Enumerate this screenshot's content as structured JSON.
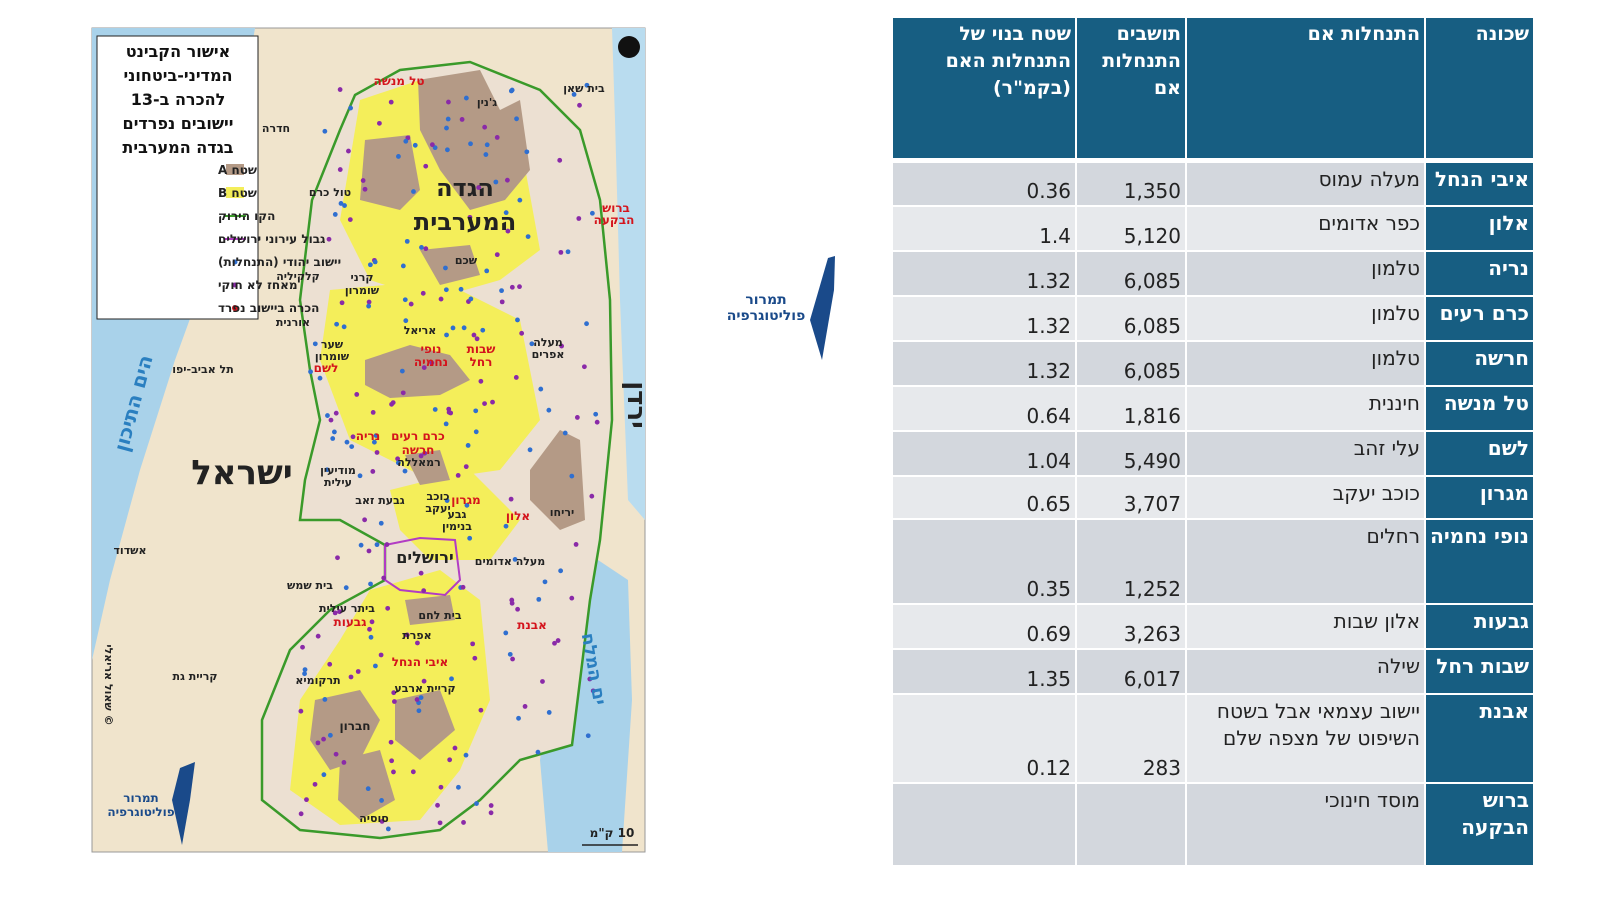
{
  "map": {
    "title_lines": [
      "אישור הקבינט",
      "המדיני-ביטחוני",
      "להכרה ב-13",
      "יישובים נפרדים",
      "בגדה המערבית"
    ],
    "legend": [
      "שטח A",
      "שטח B",
      "הקו הירוק",
      "גבול עירוני ירושלים",
      "יישוב יהודי (התנחלות)",
      "מאחז לא חוקי",
      "הכרה ביישוב נפרד"
    ],
    "labels": [
      "הגדה",
      "המערבית",
      "ישראל",
      "הים התיכון",
      "ים המלח",
      "ירדן",
      "טל מנשה",
      "בית שאן",
      "ג'נין",
      "חדרה",
      "ברוש",
      "הבקעה",
      "טול כרם",
      "שכם",
      "קלקיליה",
      "קרני",
      "שומרון",
      "אורנית",
      "אריאל",
      "שער",
      "שומרון",
      "נופי",
      "נחמיה",
      "שבות",
      "רחל",
      "מעלה",
      "אפרים",
      "לשם",
      "תל אביב-יפו",
      "כרם רעים",
      "נריה",
      "חרשה",
      "רמאללה",
      "מודיעין",
      "עילית",
      "מגרון",
      "כוכב",
      "יעקב",
      "אלון",
      "יריחו",
      "גבעת זאב",
      "גבע",
      "בנימין",
      "מעלה אדומים",
      "ירושלים",
      "אשדוד",
      "בית שמש",
      "ביתר עילית",
      "בית לחם",
      "גבעות",
      "אבנת",
      "אפרת",
      "איבי הנחל",
      "קריית גת",
      "תרקומיא",
      "קריית ארבע",
      "חברון",
      "סוסיה",
      "10 ק\"מ",
      "© שאול אריאלי",
      "תמרור",
      "פוליטוגרפיה"
    ]
  },
  "logo": {
    "line1": "תמרור",
    "line2": "פוליטוגרפיה"
  },
  "table": {
    "header": [
      "שכונה",
      "התנחלות אם",
      "תושבים התנחלות אם",
      "שטח בנוי של התנחלות האם (בקמ\"ר)"
    ],
    "rows": [
      {
        "neighborhood": "איבי הנחל",
        "mother": "מעלה עמוס",
        "residents": "1,350",
        "area": "0.36"
      },
      {
        "neighborhood": "אלון",
        "mother": "כפר אדומים",
        "residents": "5,120",
        "area": "1.4"
      },
      {
        "neighborhood": "נריה",
        "mother": "טלמון",
        "residents": "6,085",
        "area": "1.32"
      },
      {
        "neighborhood": "כרם רעים",
        "mother": "טלמון",
        "residents": "6,085",
        "area": "1.32"
      },
      {
        "neighborhood": "חרשה",
        "mother": "טלמון",
        "residents": "6,085",
        "area": "1.32"
      },
      {
        "neighborhood": "טל מנשה",
        "mother": "חיננית",
        "residents": "1,816",
        "area": "0.64"
      },
      {
        "neighborhood": "לשם",
        "mother": "עלי זהב",
        "residents": "5,490",
        "area": "1.04"
      },
      {
        "neighborhood": "מגרון",
        "mother": "כוכב יעקב",
        "residents": "3,707",
        "area": "0.65"
      },
      {
        "neighborhood": "נופי נחמיה",
        "mother": "רחלים",
        "residents": "1,252",
        "area": "0.35"
      },
      {
        "neighborhood": "גבעות",
        "mother": "אלון שבות",
        "residents": "3,263",
        "area": "0.69"
      },
      {
        "neighborhood": "שבות רחל",
        "mother": "שילה",
        "residents": "6,017",
        "area": "1.35"
      },
      {
        "neighborhood": "אבנת",
        "mother": "יישוב עצמאי אבל בשטח השיפוט של מצפה שלם",
        "residents": "283",
        "area": "0.12"
      },
      {
        "neighborhood": "ברוש הבקעה",
        "mother": "מוסד חינוכי"
      }
    ]
  }
}
